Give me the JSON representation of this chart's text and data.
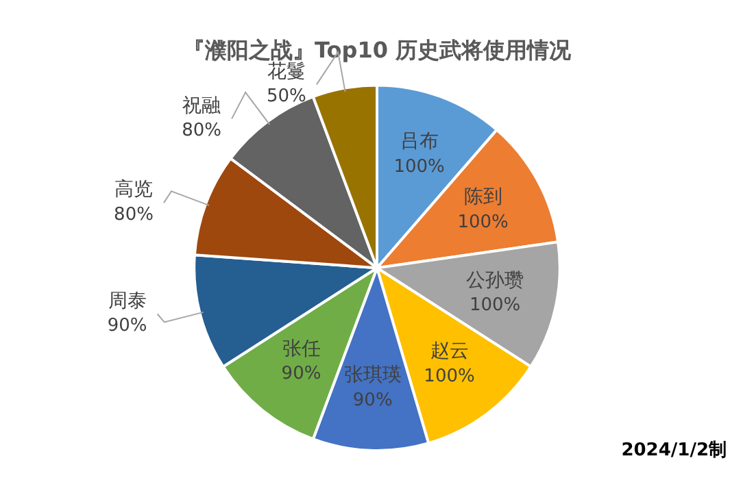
{
  "chart_data": {
    "type": "pie",
    "title": "『濮阳之战』Top10 历史武将使用情况",
    "categories": [
      "吕布",
      "陈到",
      "公孙瓒",
      "赵云",
      "张琪瑛",
      "张任",
      "周泰",
      "高览",
      "祝融",
      "花鬘"
    ],
    "values": [
      100,
      100,
      100,
      100,
      90,
      90,
      90,
      80,
      80,
      50
    ],
    "value_labels": [
      "100%",
      "100%",
      "100%",
      "100%",
      "90%",
      "90%",
      "90%",
      "80%",
      "80%",
      "50%"
    ],
    "colors": [
      "#5b9bd5",
      "#ed7d31",
      "#a5a5a5",
      "#ffc000",
      "#4472c4",
      "#70ad47",
      "#255e91",
      "#9e480e",
      "#636363",
      "#997300"
    ],
    "annotations": [
      "2024/1/2制"
    ],
    "legend": false
  }
}
